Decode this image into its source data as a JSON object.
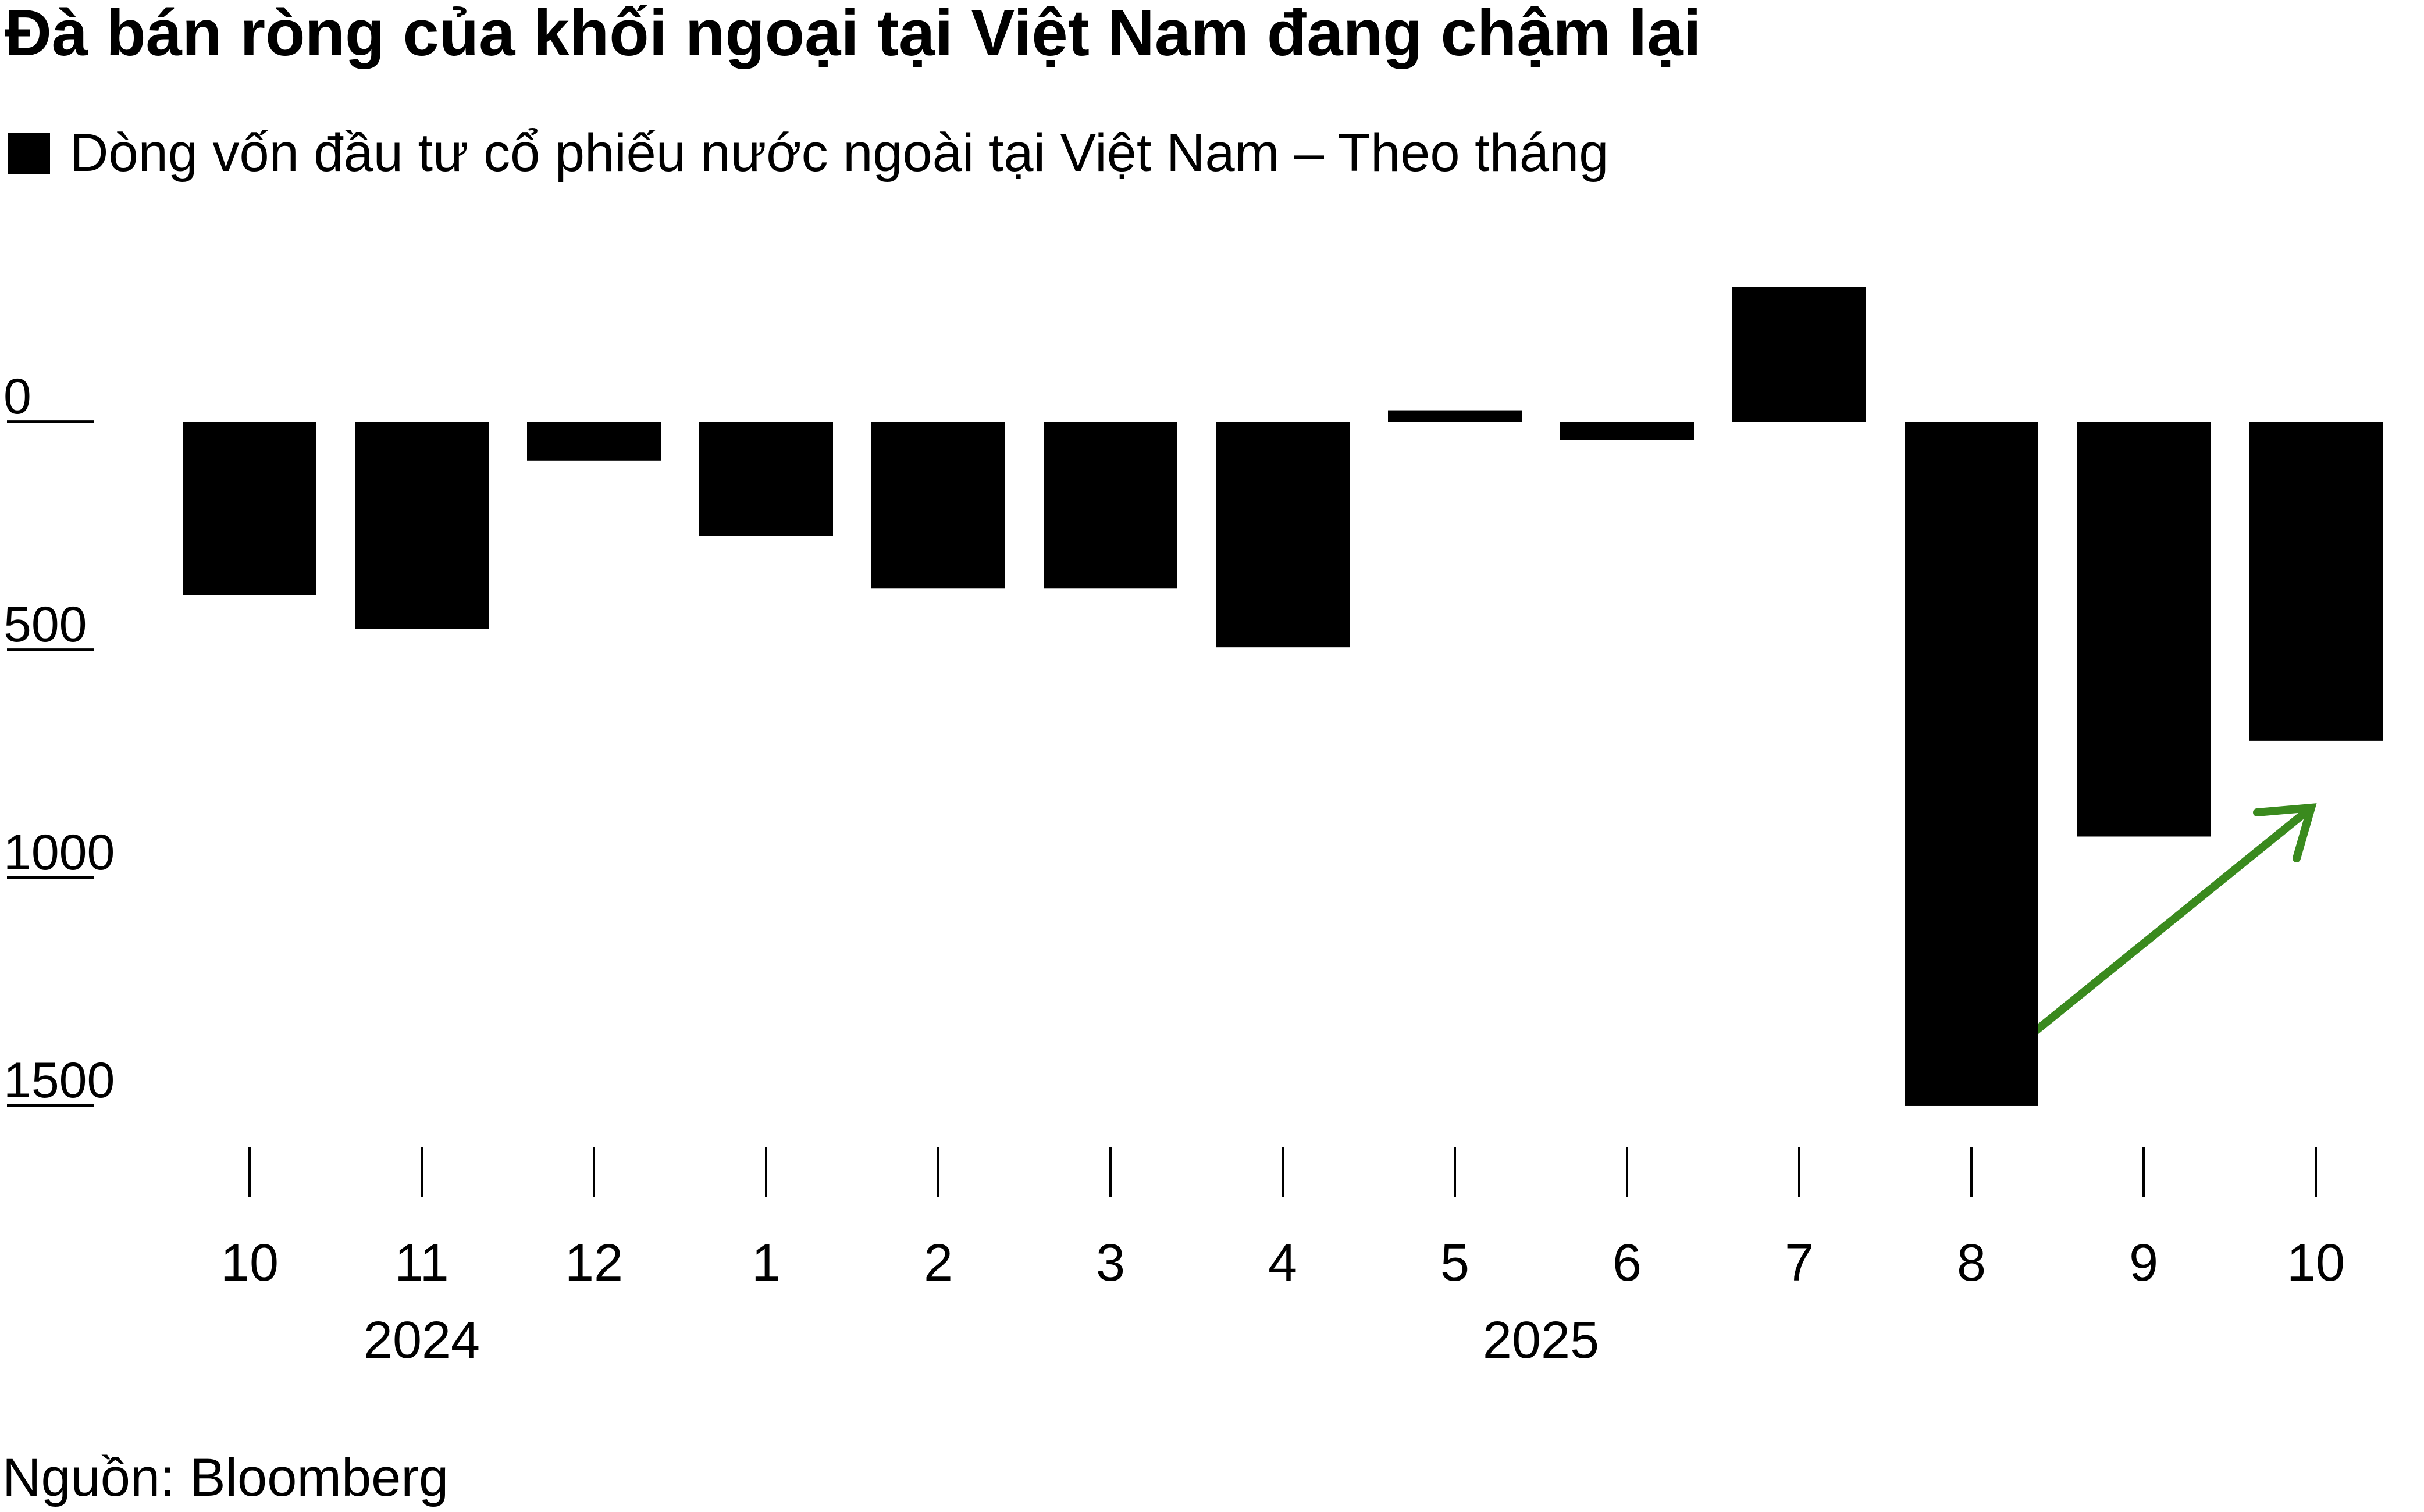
{
  "chart_data": {
    "type": "bar",
    "title": "Đà bán ròng của khối ngoại tại Việt Nam đang chậm lại",
    "series": [
      {
        "name": "Dòng vốn đầu tư cổ phiếu nước ngoài tại Việt Nam – Theo tháng",
        "color": "#000000",
        "values": [
          -380,
          -455,
          -85,
          -250,
          -365,
          -365,
          -495,
          25,
          -40,
          295,
          -1500,
          -910,
          -700
        ]
      }
    ],
    "categories": [
      "10",
      "11",
      "12",
      "1",
      "2",
      "3",
      "4",
      "5",
      "6",
      "7",
      "8",
      "9",
      "10"
    ],
    "groups": [
      {
        "label": "2024",
        "span": [
          0,
          2
        ]
      },
      {
        "label": "2025",
        "span": [
          3,
          12
        ]
      }
    ],
    "ylim": [
      -1560,
      300
    ],
    "yticks": [
      0,
      {
        "value": -500,
        "label": "500"
      },
      {
        "value": -1000,
        "label": "1000"
      },
      {
        "value": -1500,
        "label": "1500"
      }
    ],
    "source": "Nguồn: Bloomberg"
  }
}
